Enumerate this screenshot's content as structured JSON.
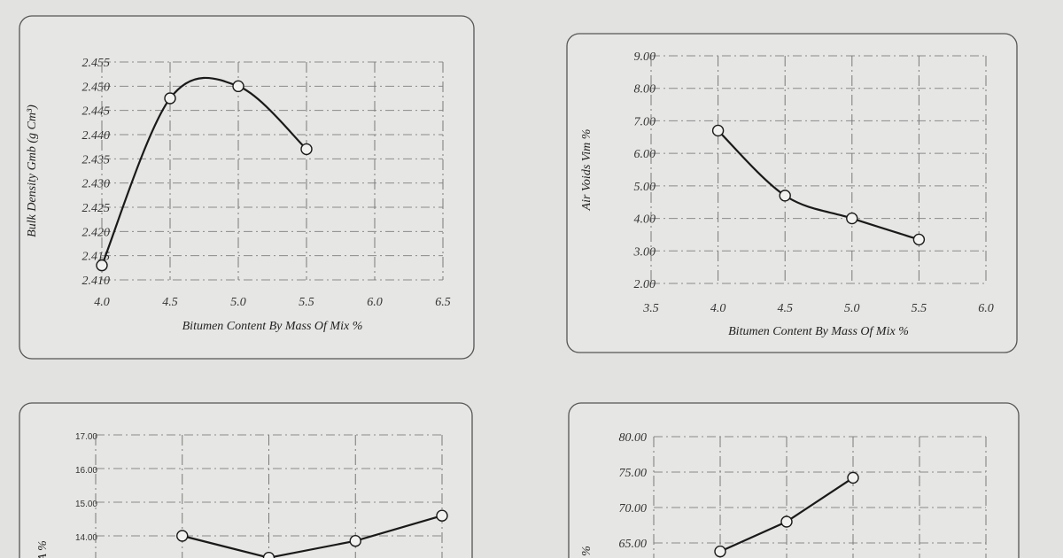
{
  "chart_data": [
    {
      "type": "line",
      "xlabel": "Bitumen Content By Mass Of Mix %",
      "ylabel": "Bulk Density Gmb (g Cm³)",
      "xlim": [
        4.0,
        6.5
      ],
      "ylim": [
        2.41,
        2.455
      ],
      "x_ticks": [
        "4.0",
        "4.5",
        "5.0",
        "5.5",
        "6.0",
        "6.5"
      ],
      "y_ticks": [
        "2.410",
        "2.415",
        "2.420",
        "2.425",
        "2.430",
        "2.435",
        "2.440",
        "2.445",
        "2.450",
        "2.455"
      ],
      "grid": true,
      "smooth": true,
      "series": [
        {
          "x": [
            4.0,
            4.5,
            5.0,
            5.5
          ],
          "y": [
            2.413,
            2.4475,
            2.45,
            2.437
          ]
        }
      ]
    },
    {
      "type": "line",
      "xlabel": "Bitumen Content By Mass Of Mix %",
      "ylabel": "Air Voids Vim %",
      "xlim": [
        3.5,
        6.0
      ],
      "ylim": [
        2.0,
        9.0
      ],
      "x_ticks": [
        "3.5",
        "4.0",
        "4.5",
        "5.0",
        "5.5",
        "6.0"
      ],
      "y_ticks": [
        "2.00",
        "3.00",
        "4.00",
        "5.00",
        "6.00",
        "7.00",
        "8.00",
        "9.00"
      ],
      "grid": true,
      "smooth": true,
      "series": [
        {
          "x": [
            4.0,
            4.5,
            5.0,
            5.5
          ],
          "y": [
            6.7,
            4.7,
            4.0,
            3.35
          ]
        }
      ]
    },
    {
      "type": "line",
      "xlabel": "",
      "ylabel": "A %",
      "xlim": [
        3.5,
        5.5
      ],
      "ylim": [
        14.0,
        17.0
      ],
      "x_ticks": [],
      "y_ticks": [
        "14.00",
        "15.00",
        "16.00",
        "17.00"
      ],
      "grid": true,
      "smooth": false,
      "series": [
        {
          "x": [
            4.0,
            4.5,
            5.0,
            5.5
          ],
          "y": [
            14.0,
            13.35,
            13.85,
            14.6
          ]
        }
      ]
    },
    {
      "type": "line",
      "xlabel": "",
      "ylabel": "%",
      "xlim": [
        3.5,
        6.0
      ],
      "ylim": [
        65.0,
        80.0
      ],
      "x_ticks": [],
      "y_ticks": [
        "65.00",
        "70.00",
        "75.00",
        "80.00"
      ],
      "grid": true,
      "smooth": false,
      "series": [
        {
          "x": [
            4.0,
            4.5,
            5.0
          ],
          "y": [
            63.8,
            68.0,
            74.2
          ]
        }
      ]
    }
  ]
}
